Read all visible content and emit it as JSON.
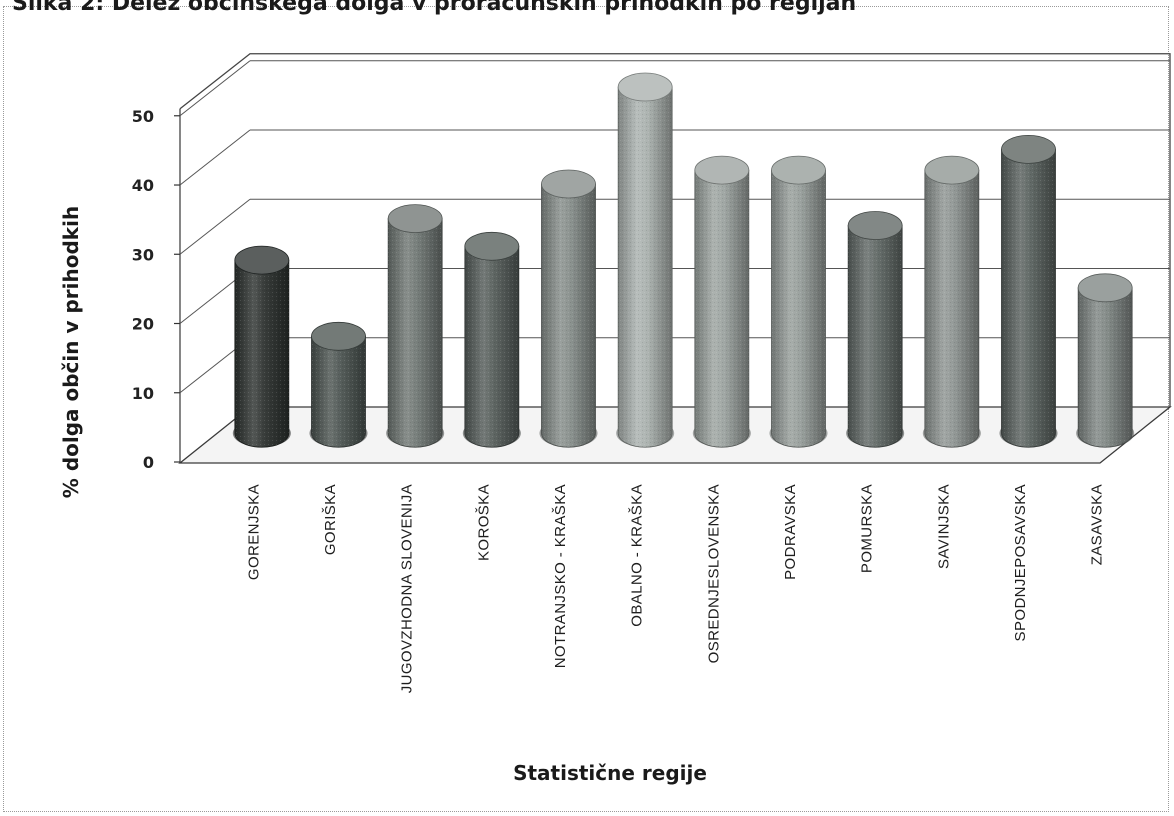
{
  "chart_data": {
    "type": "bar",
    "title": "",
    "xlabel": "Statistične regije",
    "ylabel": "% dolga občin v prihodkih",
    "ylim": [
      0,
      50
    ],
    "yticks": [
      0,
      10,
      20,
      30,
      40,
      50
    ],
    "grid": true,
    "style": "3d-cylinder",
    "categories": [
      "GORENJSKA",
      "GORIŠKA",
      "JUGOVZHODNA SLOVENIJA",
      "KOROŠKA",
      "NOTRANJSKO - KRAŠKA",
      "OBALNO - KRAŠKA",
      "OSREDNJESLOVENSKA",
      "PODRAVSKA",
      "POMURSKA",
      "SAVINJSKA",
      "SPODNJEPOSAVSKA",
      "ZASAVSKA"
    ],
    "values": [
      25,
      14,
      31,
      27,
      36,
      50,
      38,
      38,
      30,
      38,
      41,
      21
    ],
    "colors": [
      "#2d3230",
      "#4c5451",
      "#6f7673",
      "#555d5a",
      "#858c89",
      "#a9b0ad",
      "#9ba29f",
      "#959c99",
      "#5f6764",
      "#8d9491",
      "#59615e",
      "#7e8582"
    ]
  },
  "header": {
    "partial_title": "Slika 2: Delež občinskega dolga v proračunskih prihodkih po regijah"
  }
}
